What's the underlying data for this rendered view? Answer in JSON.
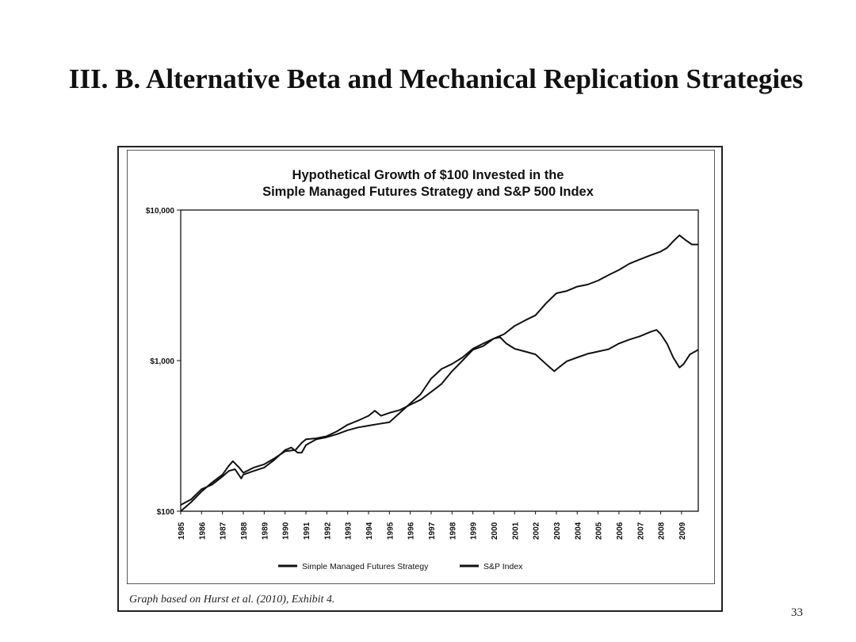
{
  "slide": {
    "title": "III.  B.  Alternative Beta and Mechanical Replication Strategies",
    "source_note": "Graph based on Hurst et al. (2010), Exhibit 4.",
    "page_number": "33"
  },
  "chart_data": {
    "type": "line",
    "title": "Hypothetical Growth of $100 Invested in the",
    "subtitle": "Simple Managed Futures Strategy and S&P 500 Index",
    "xlabel": "",
    "ylabel": "",
    "x_ticks": [
      "1985",
      "1986",
      "1987",
      "1988",
      "1989",
      "1990",
      "1991",
      "1992",
      "1993",
      "1994",
      "1995",
      "1996",
      "1997",
      "1998",
      "1999",
      "2000",
      "2001",
      "2002",
      "2003",
      "2004",
      "2005",
      "2006",
      "2007",
      "2008",
      "2009"
    ],
    "xlim": [
      1985,
      2009.8
    ],
    "y_scale": "log",
    "ylim": [
      100,
      10000
    ],
    "y_ticks": [
      100,
      1000,
      10000
    ],
    "y_tick_labels": [
      "$100",
      "$1,000",
      "$10,000"
    ],
    "grid": false,
    "legend_position": "bottom",
    "series": [
      {
        "name": "Simple Managed Futures Strategy",
        "color": "#111111",
        "x": [
          1985.0,
          1985.5,
          1986.0,
          1986.5,
          1987.0,
          1987.3,
          1987.5,
          1987.8,
          1988.0,
          1988.5,
          1989.0,
          1989.5,
          1990.0,
          1990.5,
          1990.8,
          1991.0,
          1991.5,
          1992.0,
          1992.5,
          1993.0,
          1993.5,
          1994.0,
          1994.3,
          1994.6,
          1995.0,
          1995.5,
          1996.0,
          1996.5,
          1997.0,
          1997.5,
          1998.0,
          1998.5,
          1999.0,
          1999.5,
          2000.0,
          2000.5,
          2001.0,
          2001.5,
          2002.0,
          2002.5,
          2003.0,
          2003.5,
          2004.0,
          2004.5,
          2005.0,
          2005.5,
          2006.0,
          2006.5,
          2007.0,
          2007.5,
          2008.0,
          2008.3,
          2008.6,
          2008.9,
          2009.2,
          2009.5,
          2009.8
        ],
        "values": [
          100,
          115,
          135,
          155,
          175,
          200,
          215,
          195,
          180,
          195,
          205,
          225,
          250,
          255,
          285,
          300,
          305,
          315,
          340,
          375,
          400,
          430,
          465,
          430,
          450,
          470,
          510,
          550,
          620,
          700,
          850,
          1000,
          1180,
          1250,
          1400,
          1500,
          1700,
          1850,
          2000,
          2400,
          2800,
          2900,
          3100,
          3200,
          3400,
          3700,
          4000,
          4400,
          4700,
          5000,
          5300,
          5600,
          6200,
          6800,
          6300,
          5900,
          5900
        ]
      },
      {
        "name": "S&P Index",
        "color": "#111111",
        "x": [
          1985.0,
          1985.5,
          1986.0,
          1986.5,
          1987.0,
          1987.3,
          1987.6,
          1987.9,
          1988.0,
          1988.5,
          1989.0,
          1989.5,
          1990.0,
          1990.3,
          1990.6,
          1990.8,
          1991.0,
          1991.5,
          1992.0,
          1992.5,
          1993.0,
          1993.5,
          1994.0,
          1994.5,
          1995.0,
          1995.5,
          1996.0,
          1996.5,
          1997.0,
          1997.5,
          1998.0,
          1998.5,
          1999.0,
          1999.5,
          2000.0,
          2000.3,
          2000.6,
          2001.0,
          2001.5,
          2002.0,
          2002.5,
          2002.9,
          2003.2,
          2003.5,
          2004.0,
          2004.5,
          2005.0,
          2005.5,
          2006.0,
          2006.5,
          2007.0,
          2007.5,
          2007.8,
          2008.0,
          2008.3,
          2008.6,
          2008.9,
          2009.1,
          2009.4,
          2009.8
        ],
        "values": [
          110,
          120,
          140,
          150,
          170,
          185,
          190,
          165,
          175,
          185,
          195,
          220,
          255,
          265,
          245,
          245,
          275,
          300,
          310,
          325,
          345,
          360,
          370,
          380,
          390,
          450,
          520,
          600,
          760,
          880,
          950,
          1050,
          1200,
          1300,
          1400,
          1430,
          1300,
          1200,
          1150,
          1100,
          950,
          850,
          920,
          990,
          1050,
          1110,
          1150,
          1190,
          1300,
          1380,
          1450,
          1550,
          1600,
          1500,
          1300,
          1050,
          900,
          950,
          1100,
          1180
        ]
      }
    ]
  }
}
